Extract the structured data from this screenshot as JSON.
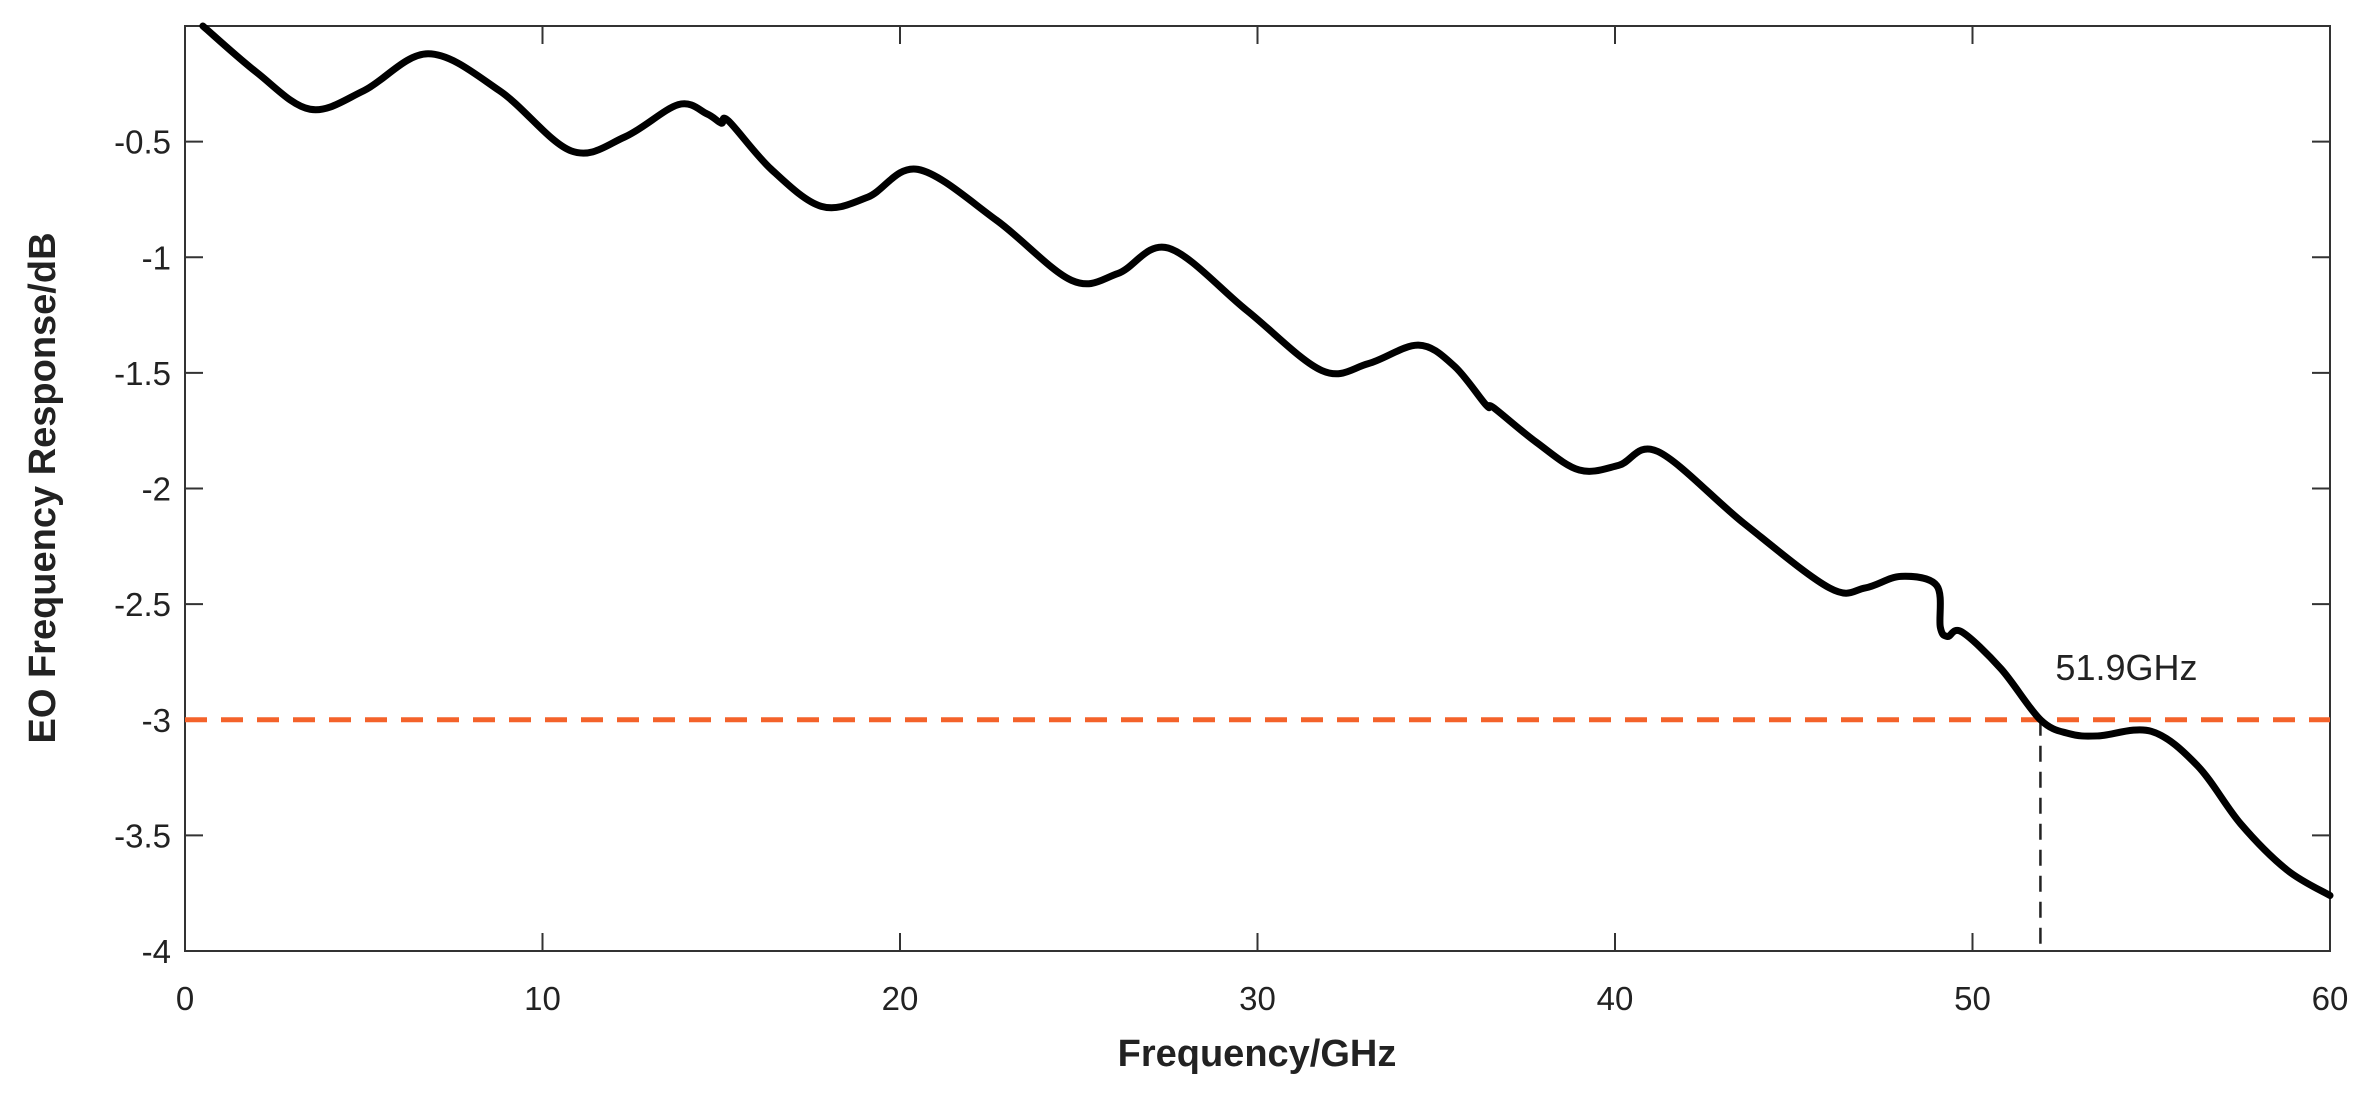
{
  "chart_data": {
    "type": "line",
    "x_label": "Frequency/GHz",
    "y_label": "EO Frequency Response/dB",
    "xlim": [
      0,
      60
    ],
    "xticks": [
      0,
      10,
      20,
      30,
      40,
      50,
      60
    ],
    "ylim": [
      -4,
      0
    ],
    "yticks": [
      -4,
      -3.5,
      -3,
      -2.5,
      -2,
      -1.5,
      -1,
      -0.5
    ],
    "x": [
      0.5,
      2,
      3.5,
      5,
      6.8,
      8.8,
      10.8,
      12.3,
      13.8,
      14.6,
      15,
      15.2,
      16.4,
      17.8,
      19.1,
      20.5,
      22.7,
      24.8,
      26.1,
      27.5,
      29.7,
      31.8,
      33.1,
      34.5,
      35.5,
      36.4,
      36.6,
      37.8,
      39,
      40.1,
      41.2,
      43.6,
      46,
      47,
      48,
      49,
      49.1,
      49.3,
      49.7,
      50.8,
      51.9,
      52.7,
      53.5,
      55,
      56.3,
      57.5,
      58.8,
      60
    ],
    "series": [
      {
        "color": "#000000",
        "values": [
          0,
          -0.2,
          -0.36,
          -0.28,
          -0.12,
          -0.28,
          -0.54,
          -0.48,
          -0.34,
          -0.38,
          -0.42,
          -0.41,
          -0.62,
          -0.78,
          -0.74,
          -0.62,
          -0.84,
          -1.1,
          -1.07,
          -0.96,
          -1.23,
          -1.49,
          -1.46,
          -1.38,
          -1.47,
          -1.64,
          -1.65,
          -1.8,
          -1.92,
          -1.9,
          -1.84,
          -2.15,
          -2.43,
          -2.43,
          -2.38,
          -2.42,
          -2.6,
          -2.64,
          -2.62,
          -2.78,
          -3,
          -3.06,
          -3.07,
          -3.05,
          -3.2,
          -3.45,
          -3.65,
          -3.76
        ]
      }
    ],
    "threshold": {
      "value": -3,
      "color": "#f4622a"
    },
    "annotation": {
      "text": "51.9GHz",
      "x": 51.9,
      "y": -3
    }
  }
}
